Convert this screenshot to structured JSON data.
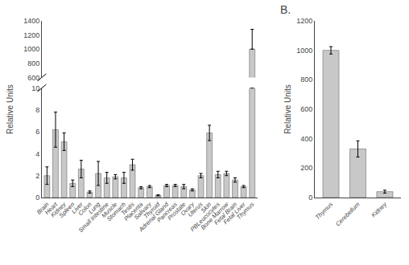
{
  "chart_data": [
    {
      "type": "bar",
      "categories": [
        "Brain",
        "Heart",
        "Kidney",
        "Spleen",
        "Liver",
        "Colon",
        "Lung",
        "Small Intestine",
        "Muscle",
        "Stomach",
        "Testis",
        "Placenta",
        "Salivary",
        "Thyroid",
        "Adrenal Gland",
        "Pancreas",
        "Prostate",
        "Ovary",
        "Uterus",
        "Skin",
        "PBLeucocytes",
        "Bone Marrow",
        "Fetal Brain",
        "Fetal Liver",
        "Thymus"
      ],
      "values": [
        null,
        null,
        null,
        null,
        null,
        null,
        null,
        null,
        null,
        null,
        null,
        null,
        null,
        null,
        null,
        null,
        null,
        null,
        null,
        null,
        null,
        null,
        null,
        null,
        1000
      ],
      "errors_lower": [
        null,
        null,
        null,
        null,
        null,
        null,
        null,
        null,
        null,
        null,
        null,
        null,
        null,
        null,
        null,
        null,
        null,
        null,
        null,
        null,
        null,
        null,
        null,
        null,
        0
      ],
      "errors_upper": [
        null,
        null,
        null,
        null,
        null,
        null,
        null,
        null,
        null,
        null,
        null,
        null,
        null,
        null,
        null,
        null,
        null,
        null,
        null,
        null,
        null,
        null,
        null,
        null,
        280
      ],
      "ylim": [
        600,
        1400
      ],
      "yticks": [
        600,
        800,
        1000,
        1200,
        1400
      ],
      "color": "#c8c8c8",
      "grid": false,
      "tick_labels": "y"
    },
    {
      "type": "bar",
      "ylabel": "Relative Units",
      "categories": [
        "Brain",
        "Heart",
        "Kidney",
        "Spleen",
        "Liver",
        "Colon",
        "Lung",
        "Small Intestine",
        "Muscle",
        "Stomach",
        "Testis",
        "Placenta",
        "Salivary",
        "Thyroid",
        "Adrenal Gland",
        "Pancreas",
        "Prostate",
        "Ovary",
        "Uterus",
        "Skin",
        "PBLeucocytes",
        "Bone Marrow",
        "Fetal Brain",
        "Fetal Liver",
        "Thymus"
      ],
      "values": [
        2.0,
        6.2,
        5.1,
        1.3,
        2.6,
        0.5,
        2.2,
        1.8,
        1.9,
        1.8,
        3.0,
        0.9,
        1.0,
        0.2,
        1.1,
        1.1,
        1.0,
        0.7,
        2.0,
        5.9,
        2.1,
        2.2,
        1.6,
        1.0,
        10.0
      ],
      "errors": [
        0.8,
        1.6,
        0.8,
        0.3,
        0.8,
        0.1,
        1.1,
        0.5,
        0.2,
        0.5,
        0.5,
        0.1,
        0.1,
        0.05,
        0.1,
        0.1,
        0.2,
        0.1,
        0.2,
        0.7,
        0.3,
        0.2,
        0.2,
        0.1,
        0.0
      ],
      "ylim": [
        0,
        10
      ],
      "yticks": [
        0,
        2,
        4,
        6,
        8,
        10
      ],
      "color": "#c8c8c8",
      "grid": false
    },
    {
      "type": "bar",
      "ylabel": "Relative Units",
      "annotations": [
        "B."
      ],
      "categories": [
        "Thymus",
        "Cerebellum",
        "Kidney"
      ],
      "values": [
        1000,
        330,
        40
      ],
      "errors": [
        25,
        55,
        10
      ],
      "ylim": [
        0,
        1200
      ],
      "yticks": [
        0,
        200,
        400,
        600,
        800,
        1000,
        1200
      ],
      "color": "#c8c8c8",
      "grid": false
    }
  ]
}
